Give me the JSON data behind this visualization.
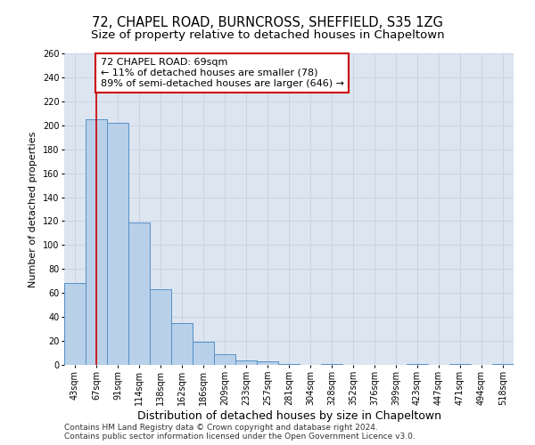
{
  "title1": "72, CHAPEL ROAD, BURNCROSS, SHEFFIELD, S35 1ZG",
  "title2": "Size of property relative to detached houses in Chapeltown",
  "xlabel": "Distribution of detached houses by size in Chapeltown",
  "ylabel": "Number of detached properties",
  "categories": [
    "43sqm",
    "67sqm",
    "91sqm",
    "114sqm",
    "138sqm",
    "162sqm",
    "186sqm",
    "209sqm",
    "233sqm",
    "257sqm",
    "281sqm",
    "304sqm",
    "328sqm",
    "352sqm",
    "376sqm",
    "399sqm",
    "423sqm",
    "447sqm",
    "471sqm",
    "494sqm",
    "518sqm"
  ],
  "values": [
    68,
    205,
    202,
    119,
    63,
    35,
    19,
    9,
    4,
    3,
    1,
    0,
    1,
    0,
    0,
    0,
    1,
    0,
    1,
    0,
    1
  ],
  "bar_color": "#b8d0e8",
  "bar_edge_color": "#5590c8",
  "vline_color": "#cc0000",
  "vline_x_index": 1,
  "annotation_line1": "72 CHAPEL ROAD: 69sqm",
  "annotation_line2": "← 11% of detached houses are smaller (78)",
  "annotation_line3": "89% of semi-detached houses are larger (646) →",
  "annotation_box_color": "#cc0000",
  "ylim": [
    0,
    260
  ],
  "yticks": [
    0,
    20,
    40,
    60,
    80,
    100,
    120,
    140,
    160,
    180,
    200,
    220,
    240,
    260
  ],
  "grid_color": "#c8d4e4",
  "bg_color": "#dde5f0",
  "footnote1": "Contains HM Land Registry data © Crown copyright and database right 2024.",
  "footnote2": "Contains public sector information licensed under the Open Government Licence v3.0.",
  "title1_fontsize": 10.5,
  "title2_fontsize": 9.5,
  "xlabel_fontsize": 9,
  "ylabel_fontsize": 8,
  "tick_fontsize": 7,
  "annotation_fontsize": 8,
  "footnote_fontsize": 6.5
}
